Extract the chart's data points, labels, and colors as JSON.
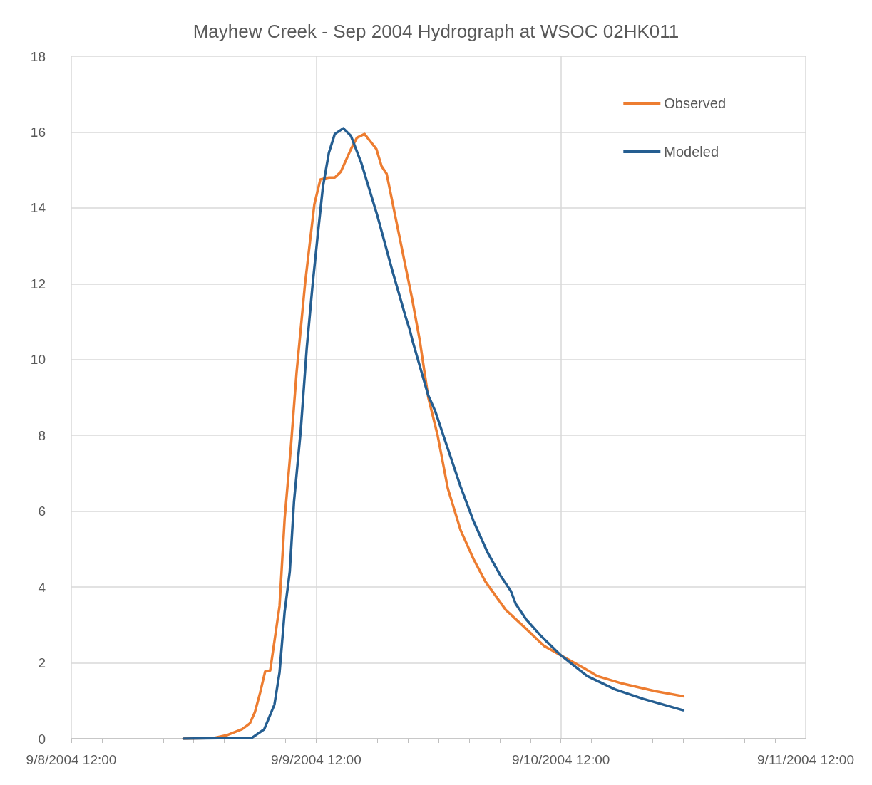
{
  "chart_data": {
    "type": "line",
    "title": "Mayhew Creek - Sep 2004 Hydrograph at WSOC 02HK011",
    "series": [
      {
        "name": "Observed",
        "color": "#ed7d31",
        "x": [
          "2004-09-08T23:00",
          "2004-09-09T02:00",
          "2004-09-09T03:20",
          "2004-09-09T04:45",
          "2004-09-09T05:30",
          "2004-09-09T06:00",
          "2004-09-09T06:30",
          "2004-09-09T07:00",
          "2004-09-09T07:30",
          "2004-09-09T08:25",
          "2004-09-09T08:55",
          "2004-09-09T09:30",
          "2004-09-09T10:05",
          "2004-09-09T10:55",
          "2004-09-09T11:50",
          "2004-09-09T12:25",
          "2004-09-09T13:15",
          "2004-09-09T13:50",
          "2004-09-09T14:25",
          "2004-09-09T15:25",
          "2004-09-09T16:00",
          "2004-09-09T16:45",
          "2004-09-09T17:55",
          "2004-09-09T18:25",
          "2004-09-09T18:55",
          "2004-09-09T19:45",
          "2004-09-09T21:25",
          "2004-09-09T22:10",
          "2004-09-09T23:00",
          "2004-09-09T23:55",
          "2004-09-10T00:55",
          "2004-09-10T02:10",
          "2004-09-10T03:25",
          "2004-09-10T04:35",
          "2004-09-10T06:35",
          "2004-09-10T08:35",
          "2004-09-10T10:20",
          "2004-09-10T12:00",
          "2004-09-10T14:20",
          "2004-09-10T15:35",
          "2004-09-10T18:05",
          "2004-09-10T21:20",
          "2004-09-11T00:00"
        ],
        "values": [
          0,
          0.02,
          0.1,
          0.25,
          0.4,
          0.7,
          1.2,
          1.77,
          1.8,
          3.5,
          5.8,
          7.6,
          9.65,
          12.0,
          14.1,
          14.75,
          14.8,
          14.8,
          14.95,
          15.55,
          15.85,
          15.95,
          15.55,
          15.1,
          14.9,
          13.8,
          11.6,
          10.5,
          9.0,
          8.0,
          6.6,
          5.5,
          4.75,
          4.15,
          3.4,
          2.9,
          2.45,
          2.2,
          1.85,
          1.65,
          1.45,
          1.25,
          1.12
        ]
      },
      {
        "name": "Modeled",
        "color": "#255e91",
        "x": [
          "2004-09-08T23:00",
          "2004-09-09T05:45",
          "2004-09-09T06:55",
          "2004-09-09T07:55",
          "2004-09-09T08:25",
          "2004-09-09T08:55",
          "2004-09-09T09:25",
          "2004-09-09T09:50",
          "2004-09-09T10:30",
          "2004-09-09T11:05",
          "2004-09-09T11:40",
          "2004-09-09T12:10",
          "2004-09-09T12:40",
          "2004-09-09T13:15",
          "2004-09-09T13:50",
          "2004-09-09T14:40",
          "2004-09-09T15:25",
          "2004-09-09T16:25",
          "2004-09-09T18:00",
          "2004-09-09T19:25",
          "2004-09-09T20:45",
          "2004-09-09T21:10",
          "2004-09-09T21:30",
          "2004-09-09T23:00",
          "2004-09-09T23:40",
          "2004-09-10T00:40",
          "2004-09-10T02:10",
          "2004-09-10T03:25",
          "2004-09-10T04:50",
          "2004-09-10T06:05",
          "2004-09-10T07:05",
          "2004-09-10T07:35",
          "2004-09-10T08:35",
          "2004-09-10T10:05",
          "2004-09-10T12:00",
          "2004-09-10T14:35",
          "2004-09-10T17:20",
          "2004-09-10T20:05",
          "2004-09-11T00:00"
        ],
        "values": [
          0,
          0.03,
          0.25,
          0.9,
          1.75,
          3.35,
          4.4,
          6.25,
          8.15,
          10.3,
          12.0,
          13.3,
          14.55,
          15.45,
          15.95,
          16.1,
          15.9,
          15.2,
          13.8,
          12.4,
          11.15,
          10.8,
          10.45,
          9.05,
          8.65,
          7.85,
          6.65,
          5.75,
          4.9,
          4.3,
          3.9,
          3.55,
          3.15,
          2.7,
          2.2,
          1.65,
          1.3,
          1.05,
          0.75
        ]
      }
    ],
    "xlim": [
      "2004-09-08T12:00",
      "2004-09-11T12:00"
    ],
    "xticks": [
      {
        "value": "2004-09-08T12:00",
        "label": "9/8/2004 12:00"
      },
      {
        "value": "2004-09-08T15:00",
        "label": null
      },
      {
        "value": "2004-09-08T18:00",
        "label": null
      },
      {
        "value": "2004-09-08T21:00",
        "label": null
      },
      {
        "value": "2004-09-09T00:00",
        "label": null
      },
      {
        "value": "2004-09-09T03:00",
        "label": null
      },
      {
        "value": "2004-09-09T06:00",
        "label": null
      },
      {
        "value": "2004-09-09T09:00",
        "label": null
      },
      {
        "value": "2004-09-09T12:00",
        "label": "9/9/2004 12:00"
      },
      {
        "value": "2004-09-09T15:00",
        "label": null
      },
      {
        "value": "2004-09-09T18:00",
        "label": null
      },
      {
        "value": "2004-09-09T21:00",
        "label": null
      },
      {
        "value": "2004-09-10T00:00",
        "label": null
      },
      {
        "value": "2004-09-10T03:00",
        "label": null
      },
      {
        "value": "2004-09-10T06:00",
        "label": null
      },
      {
        "value": "2004-09-10T09:00",
        "label": null
      },
      {
        "value": "2004-09-10T12:00",
        "label": "9/10/2004 12:00"
      },
      {
        "value": "2004-09-10T15:00",
        "label": null
      },
      {
        "value": "2004-09-10T18:00",
        "label": null
      },
      {
        "value": "2004-09-10T21:00",
        "label": null
      },
      {
        "value": "2004-09-11T00:00",
        "label": null
      },
      {
        "value": "2004-09-11T03:00",
        "label": null
      },
      {
        "value": "2004-09-11T06:00",
        "label": null
      },
      {
        "value": "2004-09-11T09:00",
        "label": null
      },
      {
        "value": "2004-09-11T12:00",
        "label": "9/11/2004 12:00"
      }
    ],
    "ylim": [
      0,
      18
    ],
    "yticks": [
      0,
      2,
      4,
      6,
      8,
      10,
      12,
      14,
      16,
      18
    ],
    "grid": true,
    "legend": "top right",
    "marker": "none",
    "line_style": "solid"
  }
}
